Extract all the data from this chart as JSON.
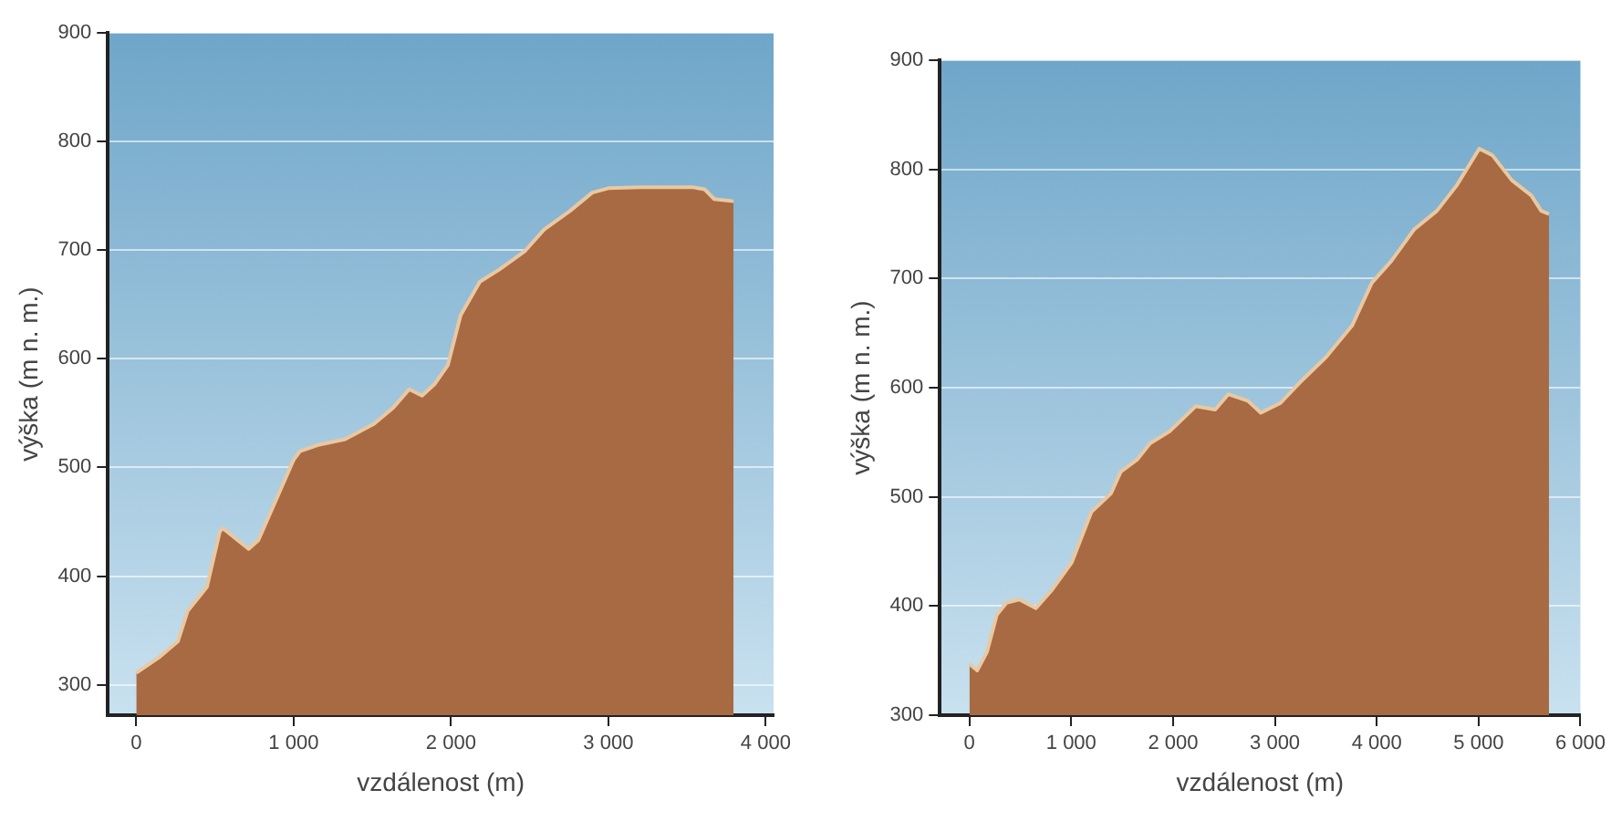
{
  "chart_data": [
    {
      "type": "area",
      "xlabel": "vzdálenost (m)",
      "ylabel": "výška (m n. m.)",
      "x": [
        0,
        143,
        265,
        327,
        449,
        531,
        551,
        714,
        776,
        1000,
        1041,
        1163,
        1327,
        1510,
        1633,
        1735,
        1816,
        1898,
        1980,
        2061,
        2184,
        2306,
        2469,
        2592,
        2755,
        2898,
        3000,
        3204,
        3531,
        3612,
        3673,
        3796
      ],
      "series": [
        {
          "color": "#a86a42",
          "values": [
            311,
            325,
            340,
            368,
            390,
            441,
            444,
            425,
            433,
            507,
            515,
            521,
            526,
            540,
            555,
            572,
            566,
            577,
            594,
            640,
            671,
            682,
            699,
            719,
            736,
            753,
            757,
            758,
            758,
            756,
            747,
            745
          ]
        }
      ],
      "xlim": [
        -180,
        4050
      ],
      "ylim": [
        272,
        900
      ],
      "xticks": [
        0,
        {
          "value": 1000,
          "label": "1 000"
        },
        {
          "value": 2000,
          "label": "2 000"
        },
        {
          "value": 3000,
          "label": "3 000"
        },
        {
          "value": 4000,
          "label": "4 000"
        }
      ],
      "yticks": [
        300,
        400,
        500,
        600,
        700,
        800,
        900
      ],
      "grid": "y",
      "legend": false
    },
    {
      "type": "area",
      "xlabel": "vzdálenost (m)",
      "ylabel": "výška (m n. m.)",
      "x": [
        0,
        77,
        173,
        269,
        365,
        493,
        653,
        813,
        1005,
        1197,
        1389,
        1486,
        1646,
        1774,
        1966,
        2222,
        2414,
        2542,
        2734,
        2862,
        3055,
        3247,
        3502,
        3759,
        3951,
        4143,
        4367,
        4591,
        4783,
        5007,
        5135,
        5327,
        5519,
        5615,
        5692
      ],
      "series": [
        {
          "color": "#a86a42",
          "values": [
            347,
            341,
            358,
            392,
            403,
            406,
            398,
            415,
            440,
            486,
            503,
            523,
            534,
            549,
            560,
            583,
            580,
            594,
            588,
            577,
            586,
            605,
            628,
            657,
            696,
            716,
            745,
            762,
            785,
            819,
            813,
            790,
            776,
            762,
            759
          ]
        }
      ],
      "xlim": [
        -290,
        6000
      ],
      "ylim": [
        300,
        900
      ],
      "xticks": [
        0,
        {
          "value": 1000,
          "label": "1 000"
        },
        {
          "value": 2000,
          "label": "2 000"
        },
        {
          "value": 3000,
          "label": "3 000"
        },
        {
          "value": 4000,
          "label": "4 000"
        },
        {
          "value": 5000,
          "label": "5 000"
        },
        {
          "value": 6000,
          "label": "6 000"
        }
      ],
      "yticks": [
        300,
        400,
        500,
        600,
        700,
        800,
        900
      ],
      "grid": "y",
      "legend": false
    }
  ]
}
